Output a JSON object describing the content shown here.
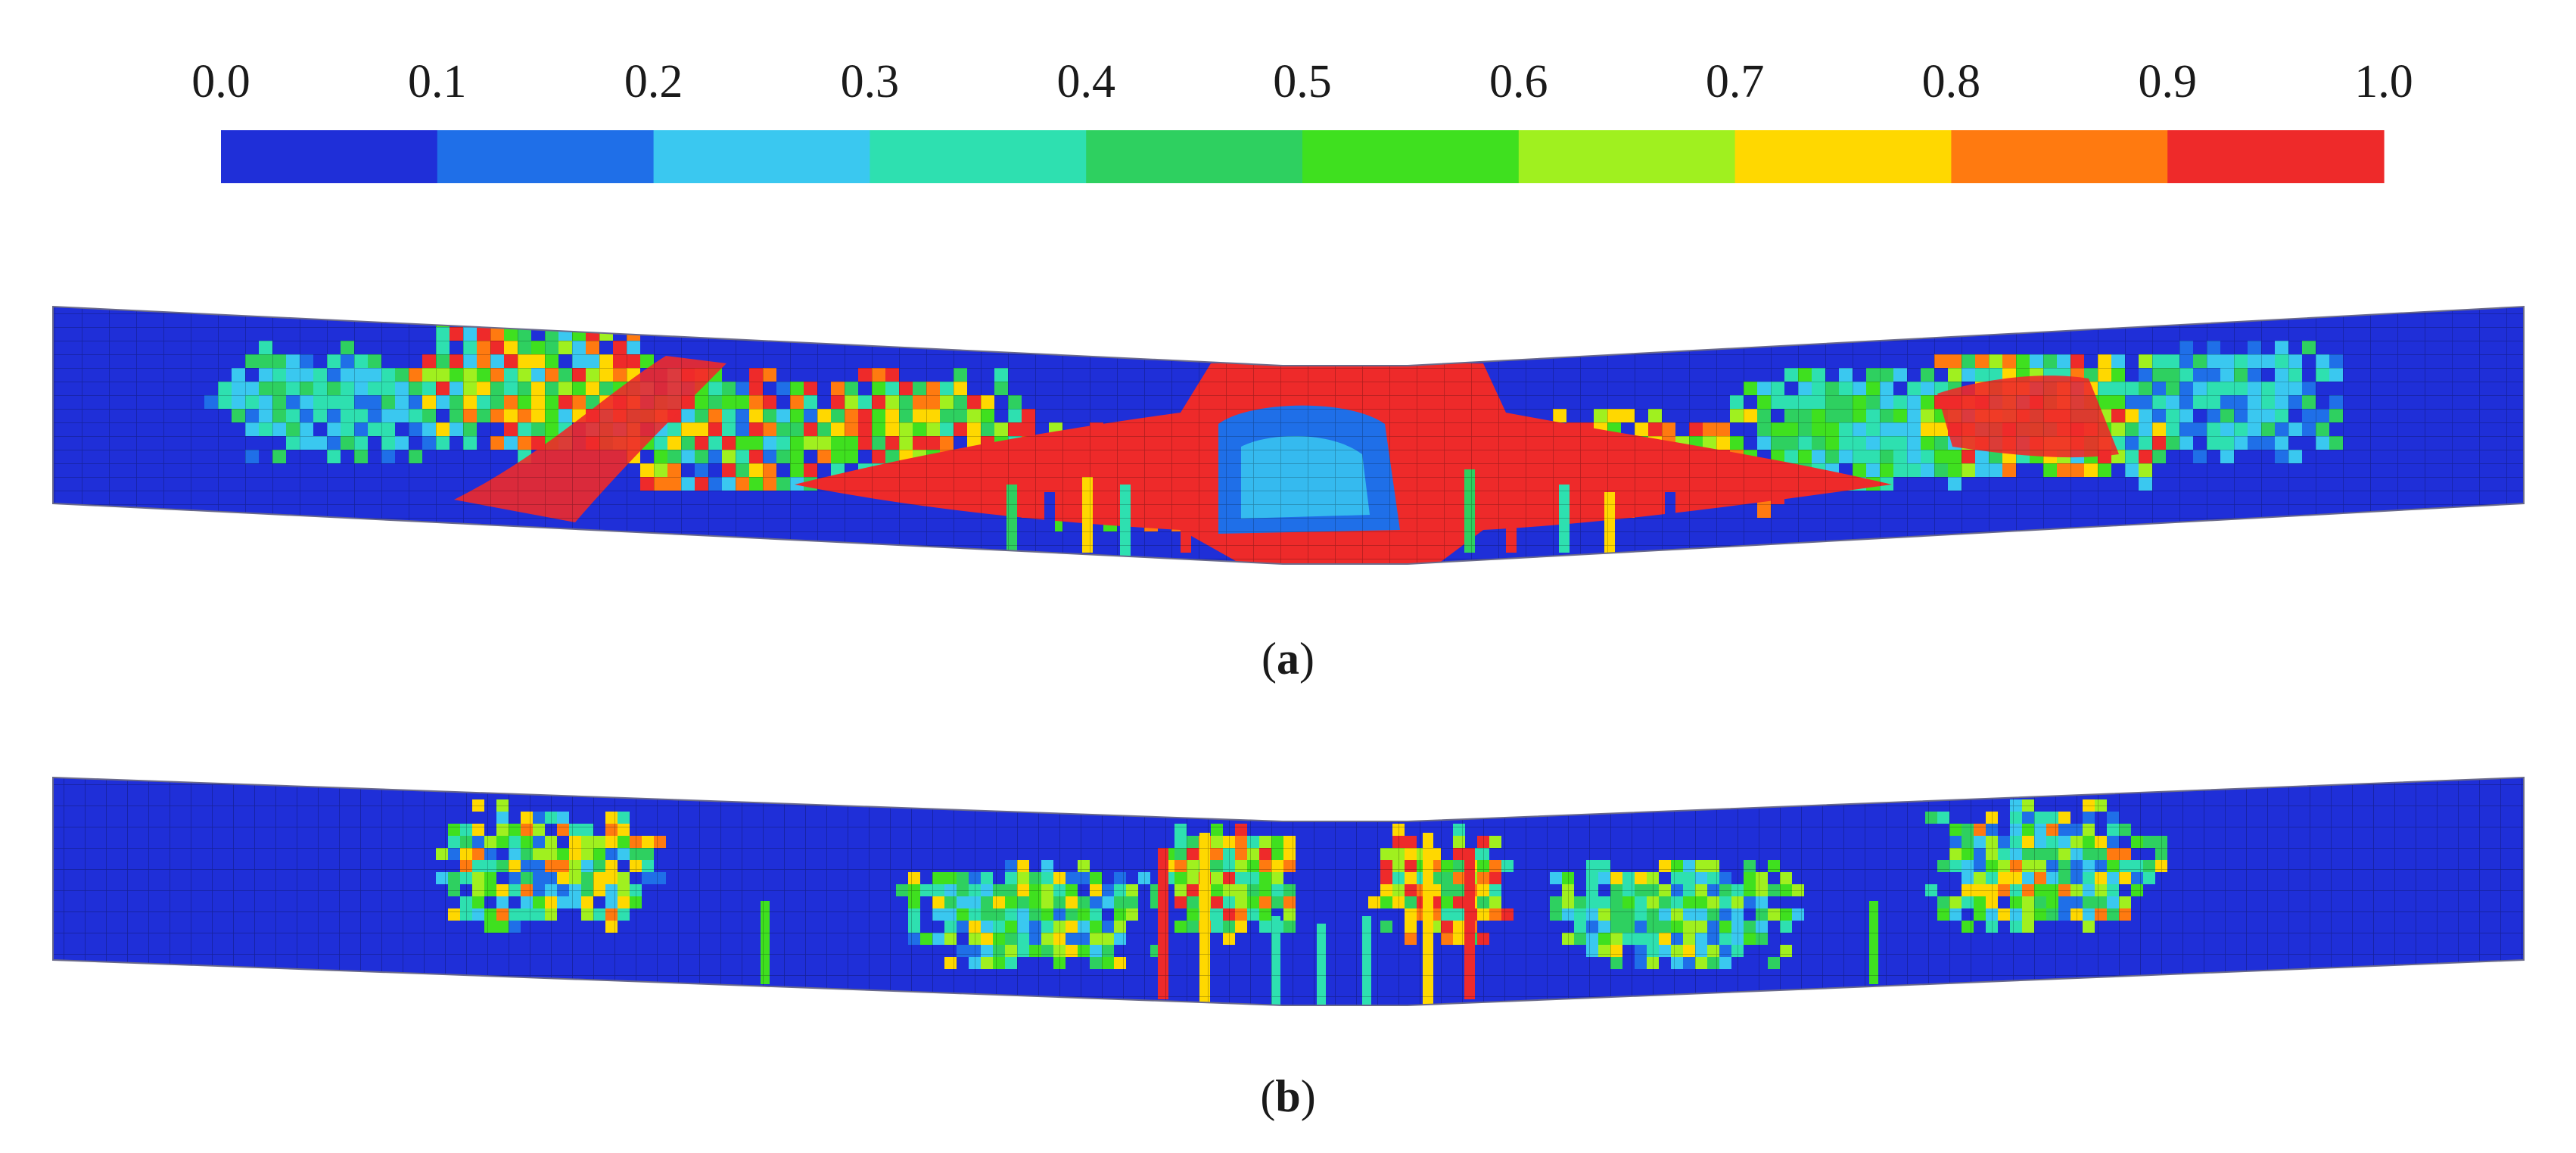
{
  "colorbar": {
    "tick_labels": [
      "0.0",
      "0.1",
      "0.2",
      "0.3",
      "0.4",
      "0.5",
      "0.6",
      "0.7",
      "0.8",
      "0.9",
      "1.0"
    ],
    "colors": [
      "#1f2fd8",
      "#1f6fe8",
      "#3ac8f0",
      "#2ee0b0",
      "#2ed060",
      "#3fe01f",
      "#a0f01f",
      "#ffd800",
      "#ff7a10",
      "#ee2a2a"
    ]
  },
  "panels": [
    {
      "caption_open": "(",
      "caption_letter": "a",
      "caption_close": ")"
    },
    {
      "caption_open": "(",
      "caption_letter": "b",
      "caption_close": ")"
    }
  ]
}
